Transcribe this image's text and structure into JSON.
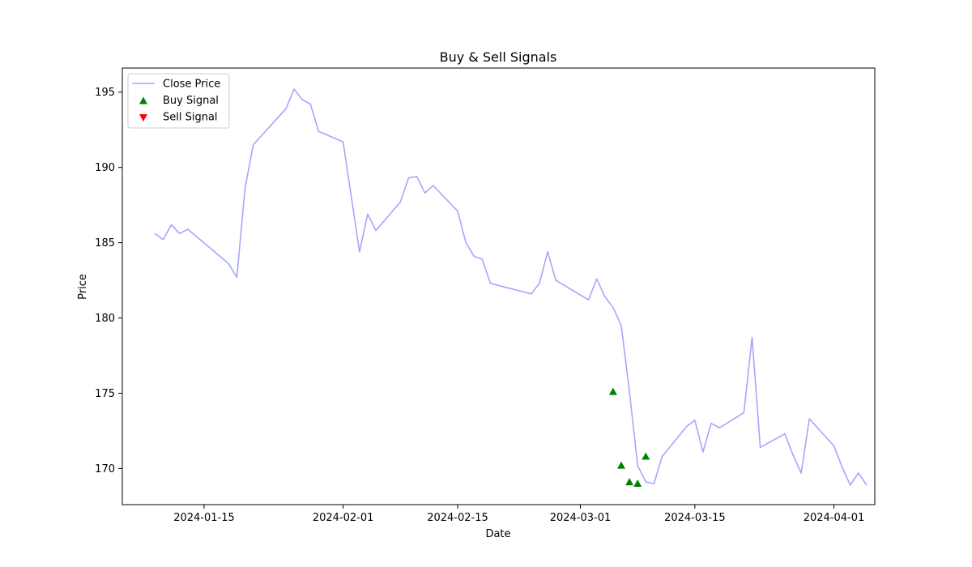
{
  "chart_data": {
    "type": "line",
    "title": "Buy & Sell Signals",
    "xlabel": "Date",
    "ylabel": "Price",
    "x_type": "date",
    "xlim": [
      "2024-01-05",
      "2024-04-06"
    ],
    "ylim": [
      167.6,
      196.6
    ],
    "xticks": [
      "2024-01-15",
      "2024-02-01",
      "2024-02-15",
      "2024-03-01",
      "2024-03-15",
      "2024-04-01"
    ],
    "yticks": [
      170,
      175,
      180,
      185,
      190,
      195
    ],
    "grid": false,
    "legend_position": "top-left",
    "series": [
      {
        "name": "Close Price",
        "kind": "line",
        "color": "#a6a6fb",
        "x": [
          "2024-01-09",
          "2024-01-10",
          "2024-01-11",
          "2024-01-12",
          "2024-01-13",
          "2024-01-18",
          "2024-01-19",
          "2024-01-20",
          "2024-01-21",
          "2024-01-25",
          "2024-01-26",
          "2024-01-27",
          "2024-01-28",
          "2024-01-29",
          "2024-02-01",
          "2024-02-03",
          "2024-02-04",
          "2024-02-05",
          "2024-02-08",
          "2024-02-09",
          "2024-02-10",
          "2024-02-11",
          "2024-02-12",
          "2024-02-15",
          "2024-02-16",
          "2024-02-17",
          "2024-02-18",
          "2024-02-19",
          "2024-02-24",
          "2024-02-25",
          "2024-02-26",
          "2024-02-27",
          "2024-03-02",
          "2024-03-03",
          "2024-03-04",
          "2024-03-05",
          "2024-03-06",
          "2024-03-07",
          "2024-03-08",
          "2024-03-09",
          "2024-03-10",
          "2024-03-11",
          "2024-03-14",
          "2024-03-15",
          "2024-03-16",
          "2024-03-17",
          "2024-03-18",
          "2024-03-21",
          "2024-03-22",
          "2024-03-23",
          "2024-03-26",
          "2024-03-27",
          "2024-03-28",
          "2024-03-29",
          "2024-04-01",
          "2024-04-02",
          "2024-04-03",
          "2024-04-04",
          "2024-04-05"
        ],
        "y": [
          185.6,
          185.2,
          186.2,
          185.6,
          185.9,
          183.6,
          182.7,
          188.6,
          191.5,
          193.9,
          195.2,
          194.5,
          194.2,
          192.4,
          191.7,
          184.4,
          186.9,
          185.8,
          187.7,
          189.3,
          189.4,
          188.3,
          188.8,
          187.1,
          185.0,
          184.1,
          183.9,
          182.3,
          181.6,
          182.3,
          184.4,
          182.5,
          181.2,
          182.6,
          181.4,
          180.7,
          179.5,
          175.1,
          170.2,
          169.1,
          169.0,
          170.8,
          172.8,
          173.2,
          171.1,
          173.0,
          172.7,
          173.7,
          178.7,
          171.4,
          172.3,
          170.9,
          169.7,
          173.3,
          171.5,
          170.1,
          168.9,
          169.7,
          168.9
        ]
      },
      {
        "name": "Buy Signal",
        "kind": "scatter",
        "marker": "triangle-up",
        "color": "#008000",
        "x": [
          "2024-03-05",
          "2024-03-06",
          "2024-03-07",
          "2024-03-08",
          "2024-03-09"
        ],
        "y": [
          175.1,
          170.2,
          169.1,
          169.0,
          170.8
        ]
      },
      {
        "name": "Sell Signal",
        "kind": "scatter",
        "marker": "triangle-down",
        "color": "#ff0000",
        "x": [],
        "y": []
      }
    ]
  }
}
